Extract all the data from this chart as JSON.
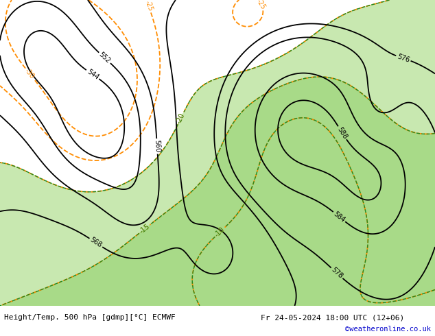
{
  "title_left": "Height/Temp. 500 hPa [gdmp][°C] ECMWF",
  "title_right": "Fr 24-05-2024 18:00 UTC (12+06)",
  "credit": "©weatheronline.co.uk",
  "bg_color": "#ffffff",
  "land_color": "#c8c8c8",
  "sea_color": "#e8e8e8",
  "green_color": "#b8e8a0",
  "text_color": "#000000",
  "credit_color": "#0000cc",
  "fig_width": 6.34,
  "fig_height": 4.9,
  "dpi": 100,
  "label_font_size": 8.0,
  "credit_font_size": 7.5,
  "lon_min": -40,
  "lon_max": 70,
  "lat_min": 23,
  "lat_max": 73
}
